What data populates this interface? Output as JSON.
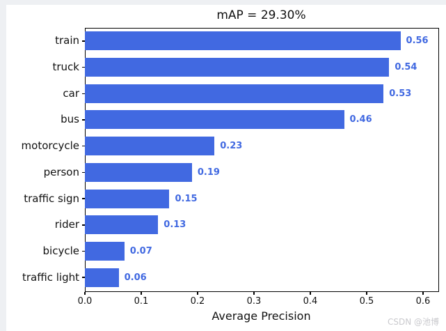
{
  "chart_data": {
    "type": "bar",
    "orientation": "horizontal",
    "title": "mAP = 29.30%",
    "categories": [
      "train",
      "truck",
      "car",
      "bus",
      "motorcycle",
      "person",
      "traffic sign",
      "rider",
      "bicycle",
      "traffic light"
    ],
    "values": [
      0.56,
      0.54,
      0.53,
      0.46,
      0.23,
      0.19,
      0.15,
      0.13,
      0.07,
      0.06
    ],
    "value_labels": [
      "0.56",
      "0.54",
      "0.53",
      "0.46",
      "0.23",
      "0.19",
      "0.15",
      "0.13",
      "0.07",
      "0.06"
    ],
    "xlabel": "Average Precision",
    "ylabel": "",
    "xlim": [
      0,
      0.626
    ],
    "xticks": [
      "0.0",
      "0.1",
      "0.2",
      "0.3",
      "0.4",
      "0.5",
      "0.6"
    ],
    "xtick_values": [
      0.0,
      0.1,
      0.2,
      0.3,
      0.4,
      0.5,
      0.6
    ],
    "grid": false,
    "legend_position": "none",
    "bar_color": "#4169e1",
    "value_label_color": "#4169e1",
    "axis_color": "#000000",
    "background_color": "#ffffff"
  },
  "watermark": {
    "text": "CSDN @池博",
    "color": "#c9c9cd"
  }
}
